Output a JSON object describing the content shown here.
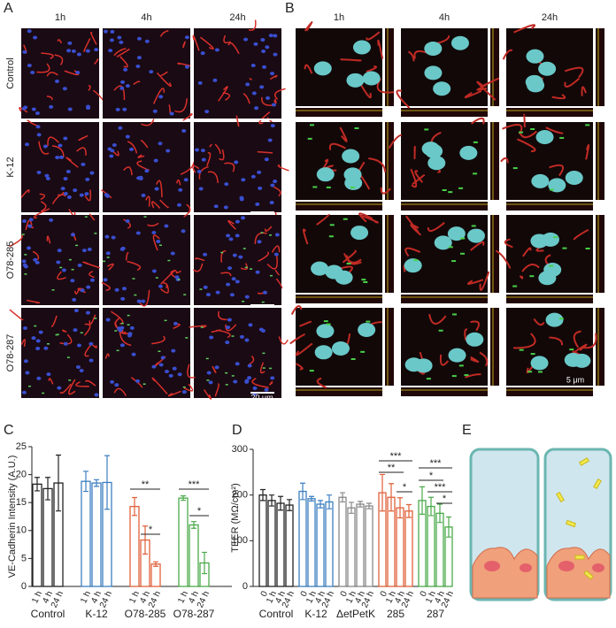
{
  "panel_labels": [
    "A",
    "B",
    "C",
    "D",
    "E"
  ],
  "panel_a": {
    "columns": [
      "1h",
      "4h",
      "24h"
    ],
    "rows": [
      "Control",
      "K-12",
      "O78-285",
      "O78-287"
    ],
    "scale_bar": "20 μm"
  },
  "panel_b": {
    "columns": [
      "1h",
      "4h",
      "24h"
    ],
    "scale_bar": "5 μm"
  },
  "chart_data": [
    {
      "type": "bar",
      "y_label": "VE-Cadherin Intensity (A.U.)",
      "categories": [
        "1 h",
        "4 h",
        "24 h"
      ],
      "ylim": [
        0,
        25
      ],
      "yticks": [
        0,
        5,
        10,
        15,
        20,
        25
      ],
      "series": [
        {
          "name": "Control",
          "color": "#222222",
          "values": [
            18.3,
            17.5,
            18.5
          ],
          "errors": [
            1.2,
            2.0,
            5.0
          ]
        },
        {
          "name": "K-12",
          "color": "#3d7fc0",
          "values": [
            18.8,
            18.5,
            18.6
          ],
          "errors": [
            1.8,
            0.6,
            4.8
          ]
        },
        {
          "name": "O78-285",
          "color": "#e0603a",
          "values": [
            14.3,
            8.3,
            4.0
          ],
          "errors": [
            1.6,
            2.5,
            0.4
          ]
        },
        {
          "name": "O78-287",
          "color": "#4aaa4a",
          "values": [
            15.8,
            11.0,
            4.2
          ],
          "errors": [
            0.4,
            0.6,
            1.9
          ]
        }
      ],
      "annotations": [
        "**",
        "*",
        "***",
        "*"
      ]
    },
    {
      "type": "bar",
      "y_label": "TEER (MΩ/cm²)",
      "categories": [
        "0",
        "1 h",
        "4 h",
        "24 h"
      ],
      "ylim": [
        0,
        300
      ],
      "yticks": [
        0,
        100,
        200,
        300
      ],
      "series": [
        {
          "name": "Control",
          "color": "#222222",
          "values": [
            200,
            188,
            182,
            178
          ],
          "errors": [
            12,
            12,
            15,
            12
          ]
        },
        {
          "name": "K-12",
          "color": "#3d7fc0",
          "values": [
            208,
            192,
            180,
            185
          ],
          "errors": [
            18,
            5,
            8,
            15
          ]
        },
        {
          "name": "ΔetPetK",
          "color": "#888888",
          "values": [
            195,
            172,
            180,
            176
          ],
          "errors": [
            10,
            12,
            6,
            6
          ]
        },
        {
          "name": "285",
          "color": "#e0603a",
          "values": [
            205,
            195,
            172,
            165
          ],
          "errors": [
            40,
            30,
            22,
            14
          ]
        },
        {
          "name": "287",
          "color": "#4aaa4a",
          "values": [
            188,
            175,
            160,
            130
          ],
          "errors": [
            30,
            20,
            20,
            22
          ]
        }
      ],
      "annotations": [
        "***",
        "**",
        "*",
        "***",
        "*",
        "***",
        "*"
      ]
    }
  ]
}
